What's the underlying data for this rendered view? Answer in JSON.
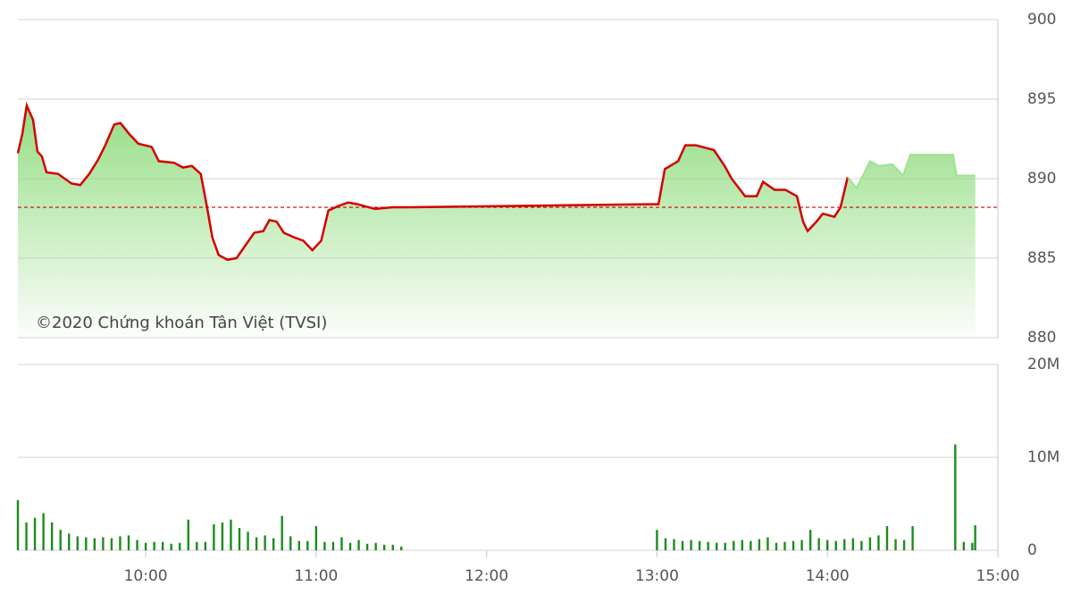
{
  "chart_data": [
    {
      "type": "line",
      "annotation": "©2020 Chứng khoán Tân Việt (TVSI)",
      "x": [
        9.25,
        9.276,
        9.302,
        9.339,
        9.365,
        9.391,
        9.418,
        9.486,
        9.564,
        9.616,
        9.669,
        9.721,
        9.763,
        9.815,
        9.852,
        9.904,
        9.957,
        10.035,
        10.077,
        10.166,
        10.219,
        10.271,
        10.323,
        10.36,
        10.391,
        10.428,
        10.48,
        10.533,
        10.585,
        10.637,
        10.69,
        10.726,
        10.768,
        10.81,
        10.873,
        10.925,
        10.978,
        11.03,
        11.072,
        11.135,
        11.187,
        11.24,
        11.344,
        11.449,
        11.554,
        12.287,
        13.009,
        13.046,
        13.124,
        13.166,
        13.229,
        13.334,
        13.397,
        13.438,
        13.517,
        13.585,
        13.622,
        13.69,
        13.753,
        13.821,
        13.857,
        13.884,
        13.936,
        13.973,
        14.041,
        14.077,
        14.119,
        14.171,
        14.25,
        14.302,
        14.381,
        14.444,
        14.486,
        14.737,
        14.758,
        14.868
      ],
      "values": [
        891.6,
        892.8,
        894.6,
        893.7,
        891.7,
        891.4,
        890.4,
        890.3,
        889.7,
        889.6,
        890.3,
        891.2,
        892.1,
        893.4,
        893.5,
        892.8,
        892.2,
        892.0,
        891.1,
        891.0,
        890.7,
        890.8,
        890.3,
        888.2,
        886.3,
        885.2,
        884.9,
        885.0,
        885.8,
        886.6,
        886.7,
        887.4,
        887.3,
        886.6,
        886.3,
        886.1,
        885.5,
        886.1,
        888.0,
        888.3,
        888.5,
        888.4,
        888.1,
        888.2,
        888.2,
        888.3,
        888.4,
        890.6,
        891.1,
        892.1,
        892.1,
        891.8,
        890.8,
        890.0,
        888.9,
        888.9,
        889.8,
        889.3,
        889.3,
        888.9,
        887.3,
        886.7,
        887.3,
        887.8,
        887.6,
        888.2,
        890.1,
        889.4,
        891.1,
        890.8,
        890.9,
        890.2,
        891.5,
        891.5,
        890.2,
        890.2
      ],
      "reference": 888.2,
      "color": "#9ee293",
      "down_color": "#d40000",
      "xlim": [
        9.25,
        15
      ],
      "ylim": [
        880,
        900
      ],
      "yticks": [
        880,
        885,
        890,
        895,
        900
      ],
      "grid": true
    },
    {
      "type": "bar",
      "x": [
        9.25,
        9.3,
        9.35,
        9.4,
        9.45,
        9.5,
        9.55,
        9.6,
        9.65,
        9.7,
        9.75,
        9.8,
        9.85,
        9.9,
        9.95,
        10.0,
        10.05,
        10.1,
        10.15,
        10.2,
        10.25,
        10.3,
        10.35,
        10.4,
        10.45,
        10.5,
        10.55,
        10.6,
        10.65,
        10.7,
        10.75,
        10.8,
        10.85,
        10.9,
        10.95,
        11.0,
        11.05,
        11.1,
        11.15,
        11.2,
        11.25,
        11.3,
        11.35,
        11.4,
        11.45,
        11.5,
        13.0,
        13.05,
        13.1,
        13.15,
        13.2,
        13.25,
        13.3,
        13.35,
        13.4,
        13.45,
        13.5,
        13.55,
        13.6,
        13.65,
        13.7,
        13.75,
        13.8,
        13.85,
        13.9,
        13.95,
        14.0,
        14.05,
        14.1,
        14.15,
        14.2,
        14.25,
        14.3,
        14.35,
        14.4,
        14.45,
        14.5,
        14.75,
        14.8,
        14.85,
        14.867
      ],
      "values": [
        5.4,
        3.0,
        3.5,
        4.0,
        3.0,
        2.2,
        1.8,
        1.5,
        1.4,
        1.3,
        1.4,
        1.3,
        1.5,
        1.6,
        1.1,
        0.8,
        0.9,
        0.9,
        0.7,
        0.8,
        3.3,
        0.9,
        0.9,
        2.8,
        3.0,
        3.3,
        2.4,
        2.0,
        1.4,
        1.6,
        1.3,
        3.7,
        1.5,
        1.0,
        1.0,
        2.6,
        0.9,
        0.9,
        1.4,
        0.8,
        1.1,
        0.7,
        0.8,
        0.6,
        0.6,
        0.4,
        2.2,
        1.3,
        1.2,
        1.0,
        1.1,
        1.0,
        0.9,
        0.8,
        0.8,
        1.0,
        1.1,
        1.0,
        1.2,
        1.4,
        0.8,
        0.9,
        1.0,
        1.1,
        2.2,
        1.3,
        1.1,
        1.0,
        1.2,
        1.3,
        1.0,
        1.4,
        1.6,
        2.6,
        1.2,
        1.1,
        2.6,
        11.4,
        0.9,
        0.8,
        2.7
      ],
      "color": "#1c8c1c",
      "xlim": [
        9.25,
        15
      ],
      "xticks": [
        {
          "value": 10,
          "label": "10:00"
        },
        {
          "value": 11,
          "label": "11:00"
        },
        {
          "value": 12,
          "label": "12:00"
        },
        {
          "value": 13,
          "label": "13:00"
        },
        {
          "value": 14,
          "label": "14:00"
        },
        {
          "value": 15,
          "label": "15:00"
        }
      ],
      "ylim": [
        0,
        20
      ],
      "yticks": [
        0,
        {
          "value": 10,
          "label": "10M"
        },
        {
          "value": 20,
          "label": "20M"
        }
      ],
      "grid": true
    }
  ]
}
